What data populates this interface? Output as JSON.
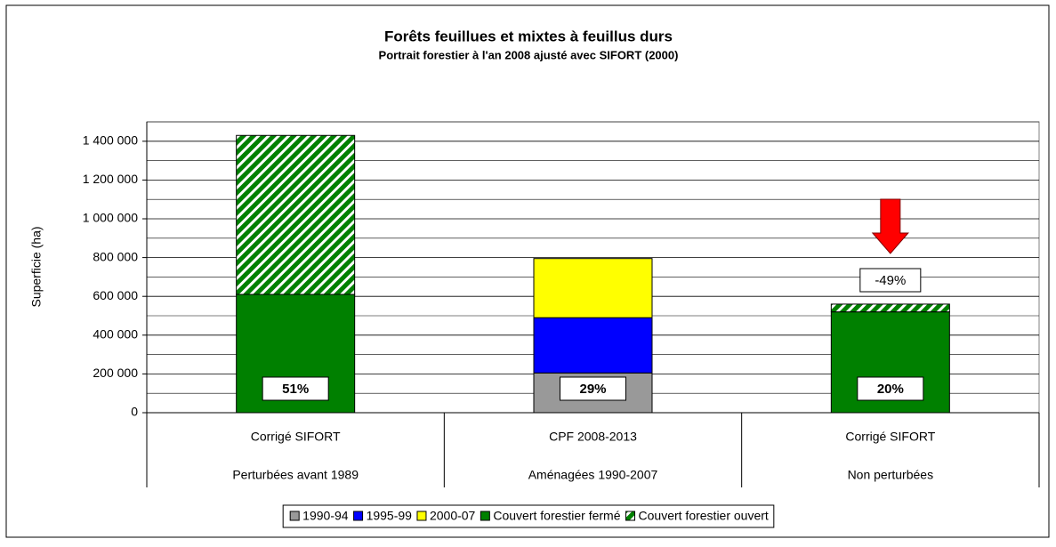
{
  "chart_data": {
    "type": "stacked_bar",
    "title": "Forêts feuillues et mixtes à feuillus durs",
    "subtitle": "Portrait forestier à l'an 2008 ajusté avec SIFORT (2000)",
    "y_label": "Superficie (ha)",
    "categories": [
      "Corrigé SIFORT",
      "CPF 2008-2013",
      "Corrigé SIFORT"
    ],
    "groups": [
      "Perturbées avant 1989",
      "Aménagées 1990-2007",
      "Non perturbées"
    ],
    "series": [
      {
        "name": "1990-94",
        "color": "#999999",
        "values": [
          null,
          205000,
          null
        ]
      },
      {
        "name": "1995-99",
        "color": "#0000ff",
        "values": [
          null,
          285000,
          null
        ]
      },
      {
        "name": "2000-07",
        "color": "#ffff00",
        "values": [
          null,
          305000,
          null
        ]
      },
      {
        "name": "Couvert forestier fermé",
        "color": "#008000",
        "values": [
          610000,
          null,
          520000
        ]
      },
      {
        "name": "Couvert forestier ouvert",
        "color": "#008000",
        "hatched": true,
        "values": [
          820000,
          null,
          40000
        ]
      }
    ],
    "share_labels": [
      "51%",
      "29%",
      "20%"
    ],
    "annotation": "-49%",
    "ylim": [
      0,
      1500000
    ],
    "yticks": [
      0,
      {
        "value": 200000,
        "label": "200 000"
      },
      {
        "value": 400000,
        "label": "400 000"
      },
      {
        "value": 600000,
        "label": "600 000"
      },
      {
        "value": 800000,
        "label": "800 000"
      },
      {
        "value": 1000000,
        "label": "1 000 000"
      },
      {
        "value": 1200000,
        "label": "1 200 000"
      },
      {
        "value": 1400000,
        "label": "1 400 000"
      }
    ],
    "minor_yticks": [
      100000,
      300000,
      500000,
      700000,
      900000,
      1100000,
      1300000,
      1500000
    ],
    "grid": true,
    "legend": "bottom"
  }
}
